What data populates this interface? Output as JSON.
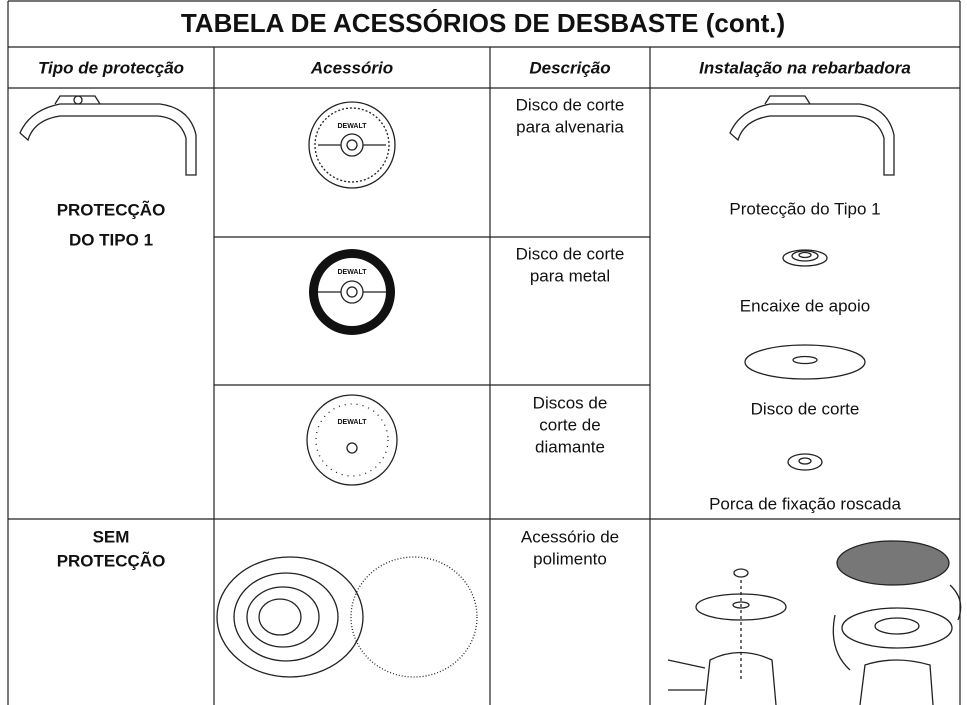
{
  "table": {
    "title": "TABELA DE ACESSÓRIOS DE DESBASTE (cont.)",
    "headers": [
      "Tipo de protecção",
      "Acessório",
      "Descrição",
      "Instalação na rebarbadora"
    ],
    "guard_type_1": [
      "PROTECÇÃO",
      "DO TIPO 1"
    ],
    "brand": "DEWALT",
    "descriptions": [
      [
        "Disco de corte",
        "para alvenaria"
      ],
      [
        "Disco de corte",
        "para metal"
      ],
      [
        "Discos de",
        "corte de",
        "diamante"
      ]
    ],
    "installation_steps": [
      "Protecção do Tipo 1",
      "Encaixe de apoio",
      "Disco de corte",
      "Porca de fixação roscada"
    ],
    "guard_none": [
      "SEM",
      "PROTECÇÃO"
    ],
    "polishing_description": [
      "Acessório de",
      "polimento"
    ]
  }
}
